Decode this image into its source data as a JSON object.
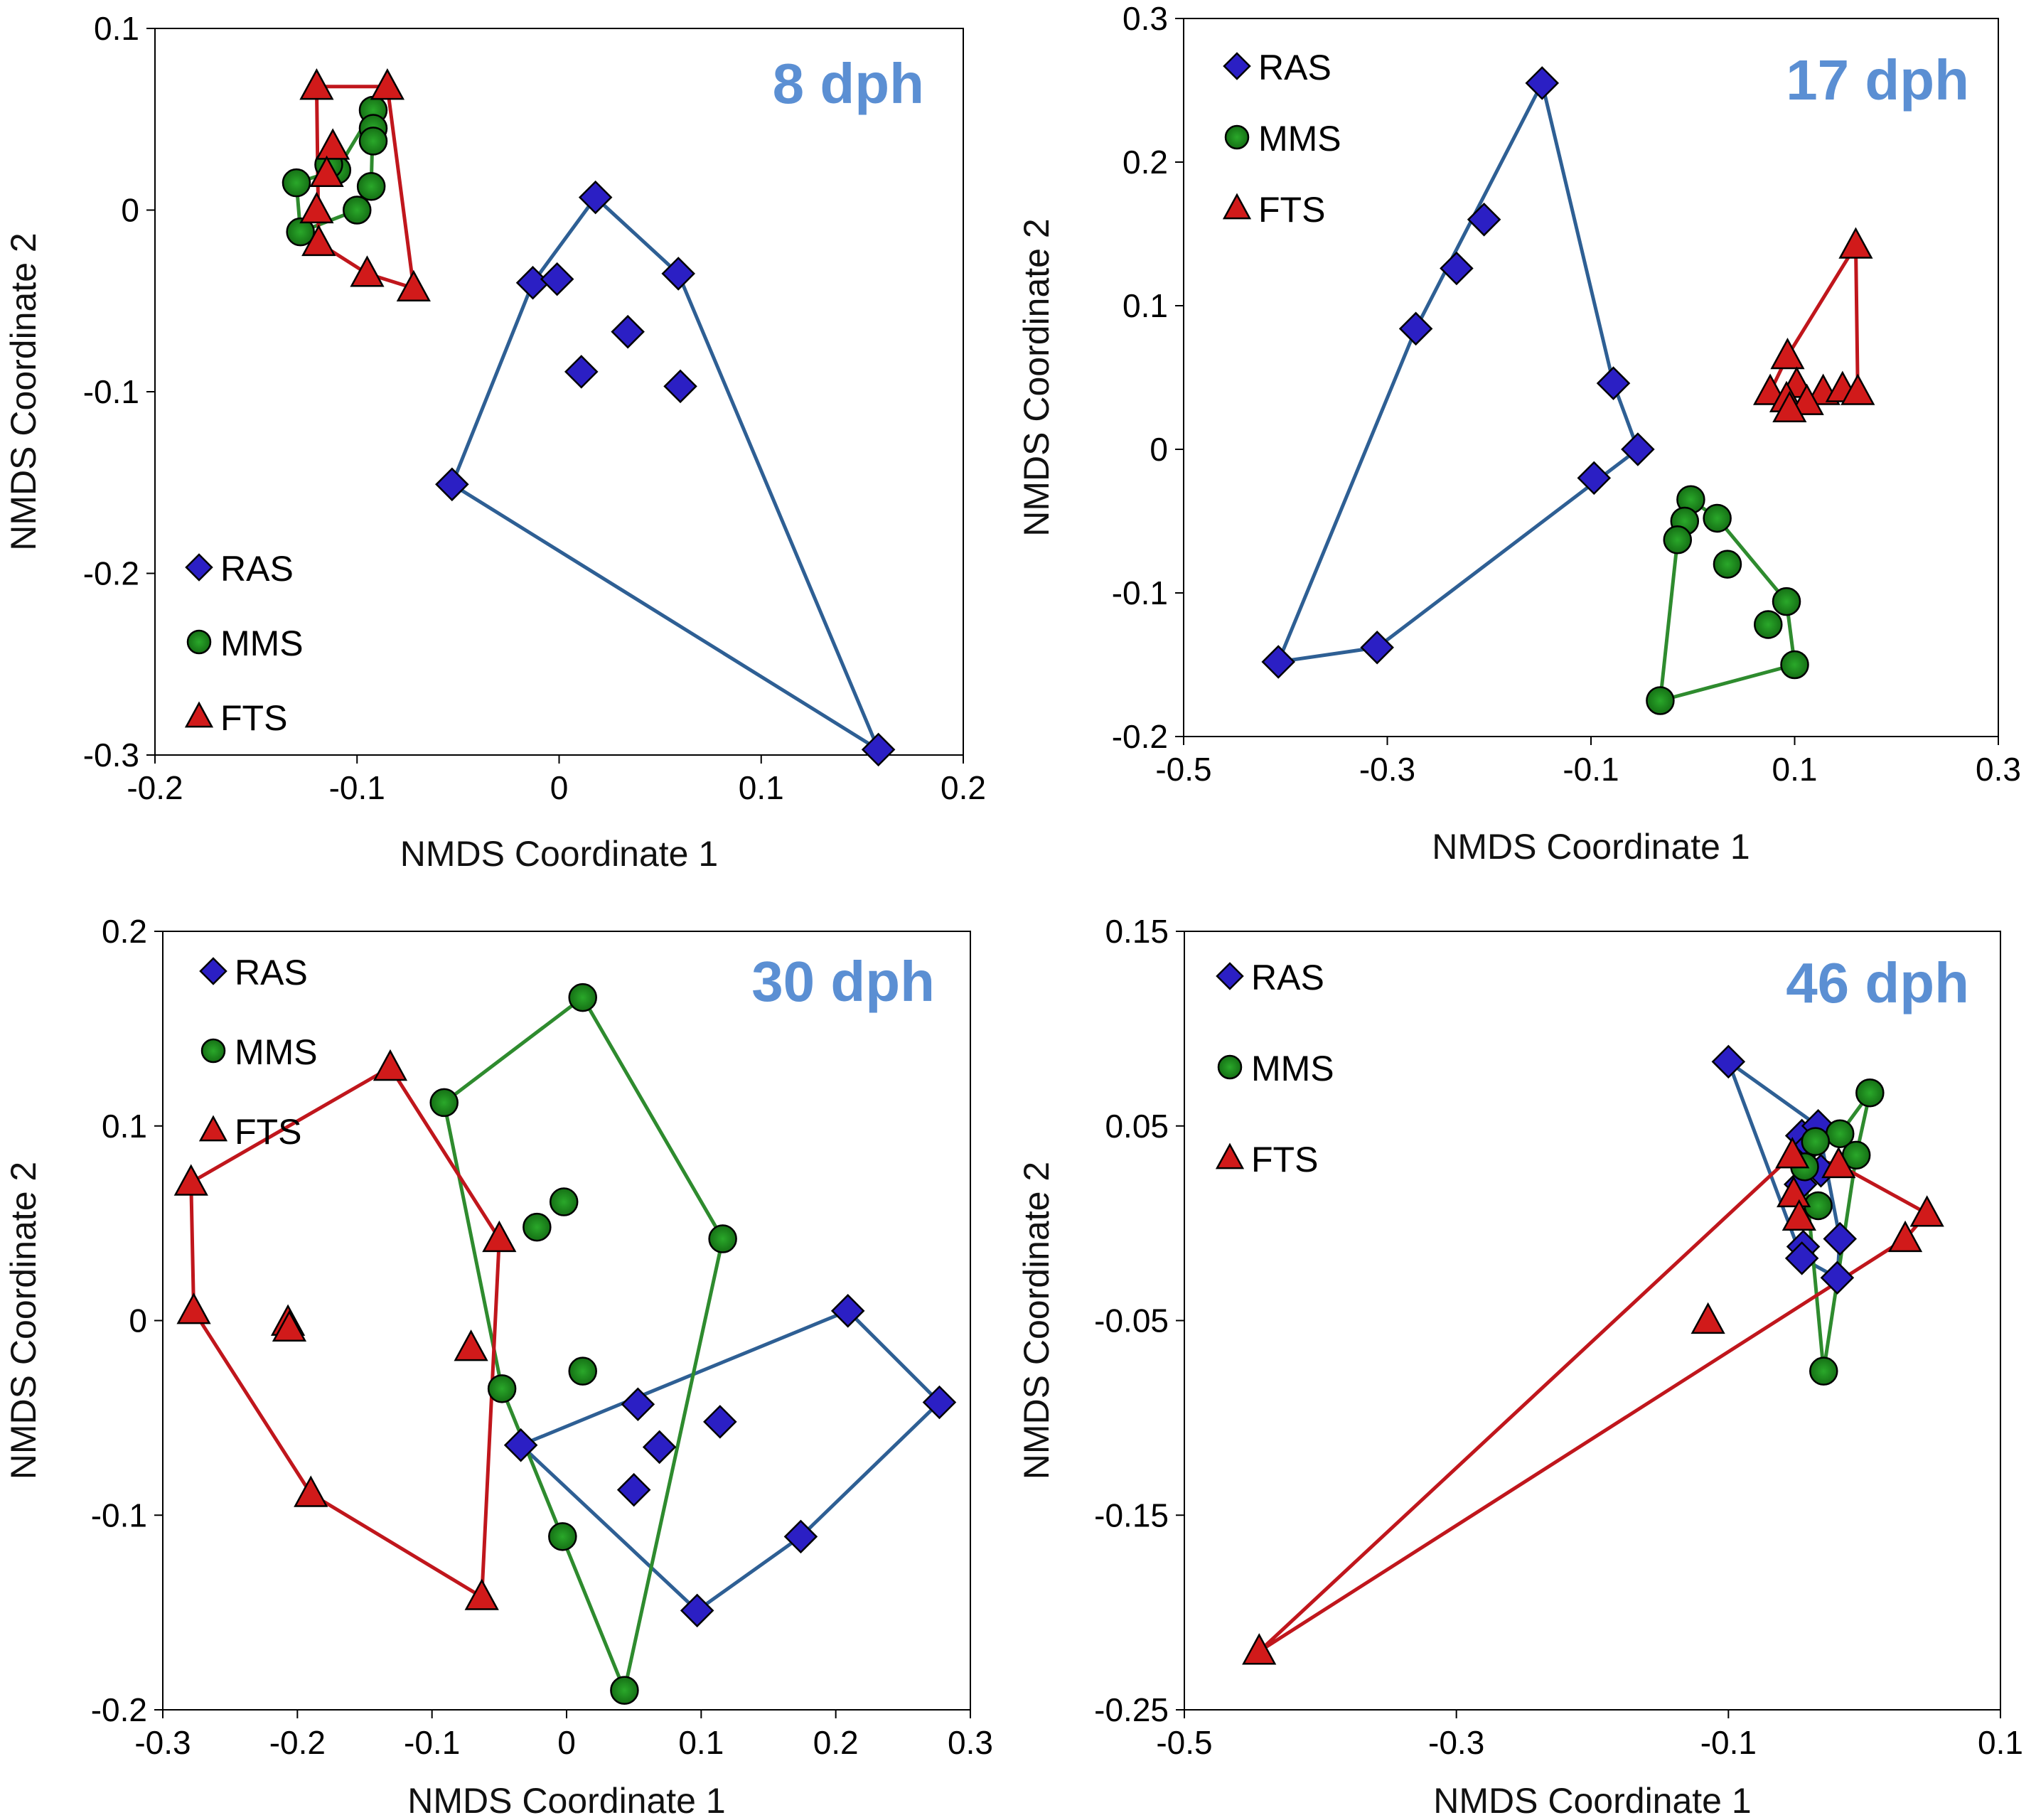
{
  "colors": {
    "RAS": "#2B1FC4",
    "MMS": "#1B8A1B",
    "FTS": "#D11A1A",
    "hull_RAS": "#2E5F94",
    "hull_MMS": "#2E8B2E",
    "hull_FTS": "#C0161C",
    "title": "#5B8FD3"
  },
  "chart_data": [
    {
      "type": "scatter",
      "title": "8 dph",
      "xlabel": "NMDS Coordinate 1",
      "ylabel": "NMDS Coordinate 2",
      "xlim": [
        -0.2,
        0.2
      ],
      "ylim": [
        -0.3,
        0.1
      ],
      "xticks": [
        -0.2,
        -0.1,
        0,
        0.1,
        0.2
      ],
      "yticks": [
        -0.3,
        -0.2,
        -0.1,
        0,
        0.1
      ],
      "xtick_labels": [
        "-0.2",
        "-0.1",
        "0",
        "0.1",
        "0.2"
      ],
      "ytick_labels": [
        "-0.3",
        "-0.2",
        "-0.1",
        "0",
        "0.1"
      ],
      "legend_position": "bottom-left",
      "title_position": "top-right",
      "series": [
        {
          "name": "RAS",
          "marker": "diamond",
          "points": [
            [
              0.018,
              0.007
            ],
            [
              -0.013,
              -0.04
            ],
            [
              -0.001,
              -0.038
            ],
            [
              0.059,
              -0.035
            ],
            [
              0.034,
              -0.067
            ],
            [
              0.011,
              -0.089
            ],
            [
              0.06,
              -0.097
            ],
            [
              -0.053,
              -0.151
            ],
            [
              0.158,
              -0.297
            ]
          ],
          "hull": [
            [
              -0.053,
              -0.151
            ],
            [
              -0.013,
              -0.04
            ],
            [
              0.018,
              0.007
            ],
            [
              0.059,
              -0.035
            ],
            [
              0.158,
              -0.297
            ]
          ]
        },
        {
          "name": "MMS",
          "marker": "circle",
          "points": [
            [
              -0.092,
              0.055
            ],
            [
              -0.092,
              0.045
            ],
            [
              -0.092,
              0.038
            ],
            [
              -0.11,
              0.022
            ],
            [
              -0.13,
              0.015
            ],
            [
              -0.093,
              0.013
            ],
            [
              -0.1,
              0.0
            ],
            [
              -0.128,
              -0.012
            ],
            [
              -0.114,
              0.025
            ]
          ],
          "hull": [
            [
              -0.13,
              0.015
            ],
            [
              -0.128,
              -0.012
            ],
            [
              -0.1,
              0.0
            ],
            [
              -0.093,
              0.013
            ],
            [
              -0.092,
              0.055
            ],
            [
              -0.11,
              0.022
            ]
          ]
        },
        {
          "name": "FTS",
          "marker": "triangle",
          "points": [
            [
              -0.12,
              0.068
            ],
            [
              -0.085,
              0.068
            ],
            [
              -0.112,
              0.035
            ],
            [
              -0.115,
              0.02
            ],
            [
              -0.12,
              0.0
            ],
            [
              -0.119,
              -0.018
            ],
            [
              -0.095,
              -0.035
            ],
            [
              -0.072,
              -0.043
            ]
          ],
          "hull": [
            [
              -0.12,
              0.068
            ],
            [
              -0.085,
              0.068
            ],
            [
              -0.072,
              -0.043
            ],
            [
              -0.095,
              -0.035
            ],
            [
              -0.119,
              -0.018
            ]
          ]
        }
      ]
    },
    {
      "type": "scatter",
      "title": "17 dph",
      "xlabel": "NMDS Coordinate 1",
      "ylabel": "NMDS Coordinate 2",
      "xlim": [
        -0.5,
        0.3
      ],
      "ylim": [
        -0.2,
        0.3
      ],
      "xticks": [
        -0.5,
        -0.3,
        -0.1,
        0.1,
        0.3
      ],
      "yticks": [
        -0.2,
        -0.1,
        0,
        0.1,
        0.2,
        0.3
      ],
      "xtick_labels": [
        "-0.5",
        "-0.3",
        "-0.1",
        "0.1",
        "0.3"
      ],
      "ytick_labels": [
        "-0.2",
        "-0.1",
        "0",
        "0.1",
        "0.2",
        "0.3"
      ],
      "legend_position": "top-left",
      "title_position": "top-right",
      "series": [
        {
          "name": "RAS",
          "marker": "diamond",
          "points": [
            [
              -0.148,
              0.255
            ],
            [
              -0.205,
              0.16
            ],
            [
              -0.232,
              0.126
            ],
            [
              -0.272,
              0.084
            ],
            [
              -0.078,
              0.046
            ],
            [
              -0.054,
              0.0
            ],
            [
              -0.097,
              -0.02
            ],
            [
              -0.31,
              -0.138
            ],
            [
              -0.407,
              -0.148
            ]
          ],
          "hull": [
            [
              -0.407,
              -0.148
            ],
            [
              -0.272,
              0.084
            ],
            [
              -0.148,
              0.255
            ],
            [
              -0.078,
              0.046
            ],
            [
              -0.054,
              0.0
            ],
            [
              -0.31,
              -0.138
            ]
          ]
        },
        {
          "name": "MMS",
          "marker": "circle",
          "points": [
            [
              -0.002,
              -0.035
            ],
            [
              -0.008,
              -0.05
            ],
            [
              0.024,
              -0.048
            ],
            [
              -0.015,
              -0.063
            ],
            [
              0.034,
              -0.08
            ],
            [
              0.092,
              -0.106
            ],
            [
              0.074,
              -0.122
            ],
            [
              0.1,
              -0.15
            ],
            [
              -0.032,
              -0.175
            ]
          ],
          "hull": [
            [
              -0.032,
              -0.175
            ],
            [
              -0.015,
              -0.063
            ],
            [
              -0.002,
              -0.035
            ],
            [
              0.024,
              -0.048
            ],
            [
              0.092,
              -0.106
            ],
            [
              0.1,
              -0.15
            ]
          ]
        },
        {
          "name": "FTS",
          "marker": "triangle",
          "points": [
            [
              0.16,
              0.142
            ],
            [
              0.093,
              0.065
            ],
            [
              0.102,
              0.045
            ],
            [
              0.076,
              0.04
            ],
            [
              0.092,
              0.035
            ],
            [
              0.128,
              0.04
            ],
            [
              0.147,
              0.042
            ],
            [
              0.162,
              0.04
            ],
            [
              0.112,
              0.033
            ],
            [
              0.095,
              0.028
            ]
          ],
          "hull": [
            [
              0.076,
              0.04
            ],
            [
              0.093,
              0.065
            ],
            [
              0.16,
              0.142
            ],
            [
              0.162,
              0.04
            ],
            [
              0.095,
              0.028
            ]
          ]
        }
      ]
    },
    {
      "type": "scatter",
      "title": "30 dph",
      "xlabel": "NMDS Coordinate 1",
      "ylabel": "NMDS Coordinate 2",
      "xlim": [
        -0.3,
        0.3
      ],
      "ylim": [
        -0.2,
        0.2
      ],
      "xticks": [
        -0.3,
        -0.2,
        -0.1,
        0,
        0.1,
        0.2,
        0.3
      ],
      "yticks": [
        -0.2,
        -0.1,
        0,
        0.1,
        0.2
      ],
      "xtick_labels": [
        "-0.3",
        "-0.2",
        "-0.1",
        "0",
        "0.1",
        "0.2",
        "0.3"
      ],
      "ytick_labels": [
        "-0.2",
        "-0.1",
        "0",
        "0.1",
        "0.2"
      ],
      "legend_position": "top-left",
      "title_position": "top-right",
      "series": [
        {
          "name": "RAS",
          "marker": "diamond",
          "points": [
            [
              0.209,
              0.005
            ],
            [
              0.277,
              -0.042
            ],
            [
              0.053,
              -0.043
            ],
            [
              0.114,
              -0.052
            ],
            [
              -0.034,
              -0.064
            ],
            [
              0.069,
              -0.065
            ],
            [
              0.05,
              -0.087
            ],
            [
              0.174,
              -0.111
            ],
            [
              0.097,
              -0.149
            ]
          ],
          "hull": [
            [
              -0.034,
              -0.064
            ],
            [
              0.209,
              0.005
            ],
            [
              0.277,
              -0.042
            ],
            [
              0.174,
              -0.111
            ],
            [
              0.097,
              -0.149
            ]
          ]
        },
        {
          "name": "MMS",
          "marker": "circle",
          "points": [
            [
              0.012,
              0.166
            ],
            [
              -0.091,
              0.112
            ],
            [
              0.116,
              0.042
            ],
            [
              -0.002,
              0.061
            ],
            [
              -0.022,
              0.048
            ],
            [
              0.012,
              -0.026
            ],
            [
              -0.048,
              -0.035
            ],
            [
              -0.003,
              -0.111
            ],
            [
              0.043,
              -0.19
            ]
          ],
          "hull": [
            [
              -0.091,
              0.112
            ],
            [
              0.012,
              0.166
            ],
            [
              0.116,
              0.042
            ],
            [
              0.043,
              -0.19
            ],
            [
              -0.048,
              -0.035
            ]
          ]
        },
        {
          "name": "FTS",
          "marker": "triangle",
          "points": [
            [
              -0.131,
              0.13
            ],
            [
              -0.279,
              0.071
            ],
            [
              -0.05,
              0.042
            ],
            [
              -0.277,
              0.005
            ],
            [
              -0.207,
              -0.001
            ],
            [
              -0.206,
              -0.004
            ],
            [
              -0.071,
              -0.014
            ],
            [
              -0.19,
              -0.089
            ],
            [
              -0.063,
              -0.142
            ]
          ],
          "hull": [
            [
              -0.279,
              0.071
            ],
            [
              -0.131,
              0.13
            ],
            [
              -0.05,
              0.042
            ],
            [
              -0.063,
              -0.142
            ],
            [
              -0.19,
              -0.089
            ],
            [
              -0.277,
              0.005
            ]
          ]
        }
      ]
    },
    {
      "type": "scatter",
      "title": "46 dph",
      "xlabel": "NMDS Coordinate 1",
      "ylabel": "NMDS Coordinate 2",
      "xlim": [
        -0.5,
        0.1
      ],
      "ylim": [
        -0.25,
        0.15
      ],
      "xticks": [
        -0.5,
        -0.3,
        -0.1,
        0.1
      ],
      "yticks": [
        -0.25,
        -0.15,
        -0.05,
        0.05,
        0.15
      ],
      "xtick_labels": [
        "-0.5",
        "-0.3",
        "-0.1",
        "0.1"
      ],
      "ytick_labels": [
        "-0.25",
        "-0.15",
        "-0.05",
        "0.05",
        "0.15"
      ],
      "legend_position": "top-left",
      "title_position": "top-right",
      "series": [
        {
          "name": "RAS",
          "marker": "diamond",
          "points": [
            [
              -0.1,
              0.083
            ],
            [
              -0.046,
              0.045
            ],
            [
              -0.034,
              0.05
            ],
            [
              -0.04,
              0.04
            ],
            [
              -0.032,
              0.027
            ],
            [
              -0.047,
              0.02
            ],
            [
              -0.018,
              -0.008
            ],
            [
              -0.045,
              -0.012
            ],
            [
              -0.046,
              -0.018
            ],
            [
              -0.02,
              -0.028
            ]
          ],
          "hull": [
            [
              -0.1,
              0.083
            ],
            [
              -0.034,
              0.05
            ],
            [
              -0.018,
              -0.008
            ],
            [
              -0.02,
              -0.028
            ],
            [
              -0.046,
              -0.018
            ]
          ]
        },
        {
          "name": "MMS",
          "marker": "circle",
          "points": [
            [
              0.004,
              0.067
            ],
            [
              -0.018,
              0.046
            ],
            [
              -0.036,
              0.042
            ],
            [
              -0.006,
              0.035
            ],
            [
              -0.044,
              0.029
            ],
            [
              -0.034,
              0.009
            ],
            [
              -0.03,
              -0.076
            ]
          ],
          "hull": [
            [
              -0.044,
              0.029
            ],
            [
              -0.036,
              0.042
            ],
            [
              -0.018,
              0.046
            ],
            [
              0.004,
              0.067
            ],
            [
              -0.006,
              0.035
            ],
            [
              -0.03,
              -0.076
            ]
          ]
        },
        {
          "name": "FTS",
          "marker": "triangle",
          "points": [
            [
              -0.053,
              0.035
            ],
            [
              -0.019,
              0.03
            ],
            [
              -0.052,
              0.015
            ],
            [
              0.046,
              0.005
            ],
            [
              -0.048,
              0.003
            ],
            [
              0.03,
              -0.008
            ],
            [
              -0.115,
              -0.05
            ],
            [
              -0.445,
              -0.22
            ]
          ],
          "hull": [
            [
              -0.445,
              -0.22
            ],
            [
              -0.053,
              0.035
            ],
            [
              -0.019,
              0.03
            ],
            [
              0.046,
              0.005
            ],
            [
              0.03,
              -0.008
            ]
          ]
        }
      ]
    }
  ]
}
